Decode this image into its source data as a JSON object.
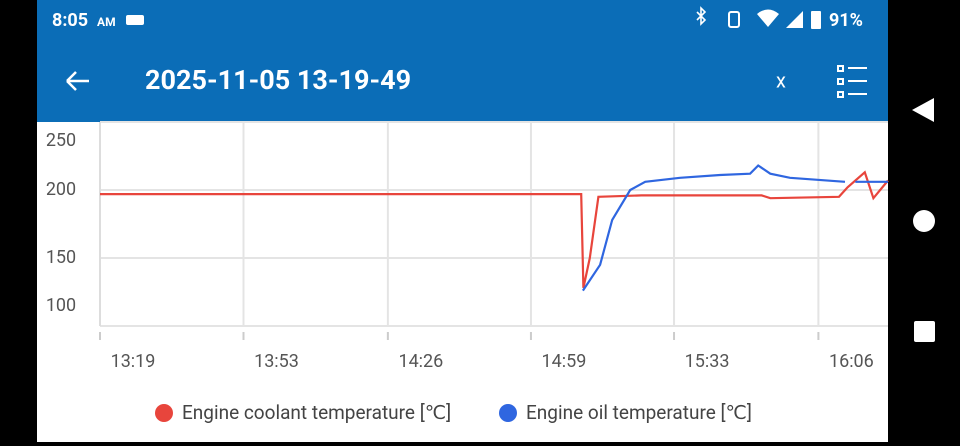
{
  "status_bar": {
    "time": "8:05",
    "am_pm": "AM",
    "battery": "91%"
  },
  "app_bar": {
    "title": "2025-11-05 13-19-49",
    "close": "x"
  },
  "chart_data": {
    "type": "line",
    "xlim": [
      799,
      982.4
    ],
    "ylim": [
      100,
      250
    ],
    "xticks": [
      {
        "value": 799,
        "label": "13:19"
      },
      {
        "value": 832.4,
        "label": "13:53"
      },
      {
        "value": 866,
        "label": "14:26"
      },
      {
        "value": 899.3,
        "label": "14:59"
      },
      {
        "value": 932.6,
        "label": "15:33"
      },
      {
        "value": 966.2,
        "label": "16:06"
      }
    ],
    "yticks": [
      100,
      150,
      200,
      250
    ],
    "grid": true,
    "series": [
      {
        "name": "Engine coolant temperature [℃]",
        "color": "#e8453c",
        "x": [
          799,
          911,
          911.5,
          913,
          915,
          925,
          940,
          953,
          955,
          971,
          973,
          977,
          979,
          982.4
        ],
        "values": [
          197,
          197,
          128,
          150,
          195,
          196,
          196,
          196,
          194,
          195,
          202,
          213,
          194,
          207
        ]
      },
      {
        "name": "Engine oil temperature [℃]",
        "color": "#2f66e0",
        "x": [
          911.4,
          915.4,
          918.2,
          922.4,
          925.9,
          934,
          943.3,
          950.3,
          952.2,
          955,
          959.6,
          972.4,
          973.5,
          974.8,
          982.4
        ],
        "values": [
          126,
          145,
          178,
          200,
          206,
          209,
          211,
          212,
          218,
          212,
          209,
          206,
          null,
          206,
          206
        ]
      }
    ]
  }
}
